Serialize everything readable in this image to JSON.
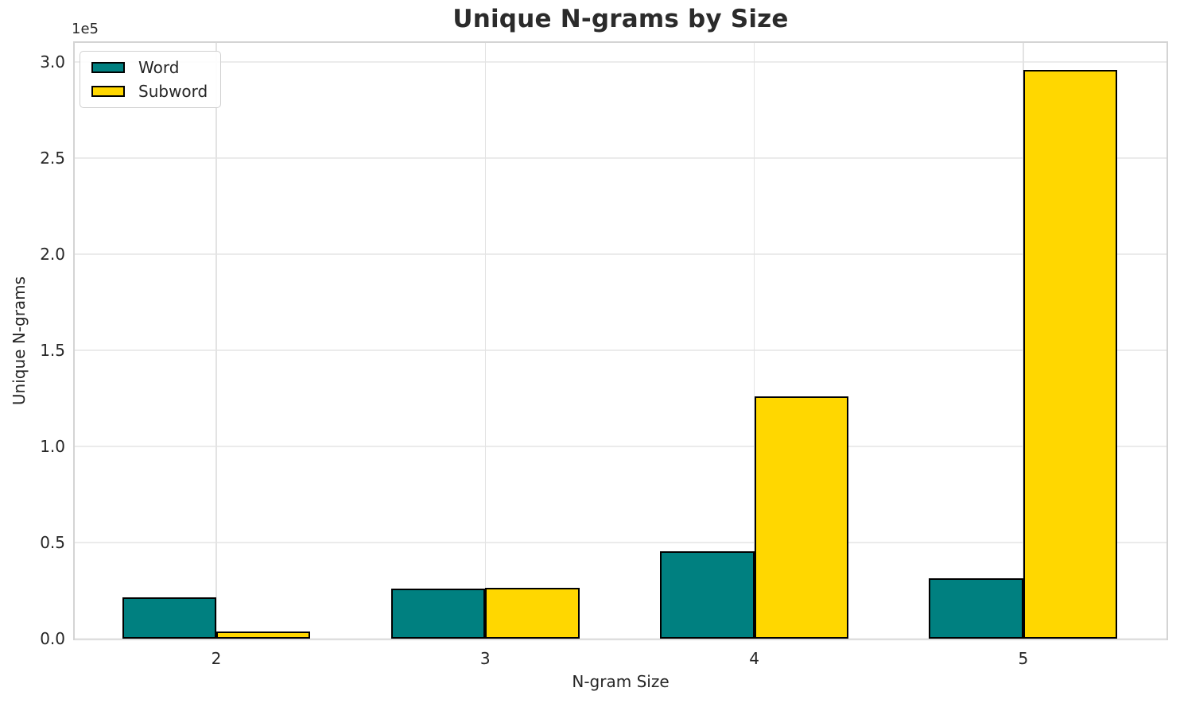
{
  "chart_data": {
    "type": "bar",
    "title": "Unique N-grams by Size",
    "xlabel": "N-gram Size",
    "ylabel": "Unique N-grams",
    "offset_text": "1e5",
    "categories": [
      "2",
      "3",
      "4",
      "5"
    ],
    "series": [
      {
        "name": "Word",
        "color": "#008080",
        "values": [
          21300,
          26000,
          45500,
          31400
        ]
      },
      {
        "name": "Subword",
        "color": "#FFD700",
        "values": [
          3600,
          26500,
          126200,
          295900
        ]
      }
    ],
    "bar_width": 0.35,
    "bar_edge_color": "#000000",
    "ylim": [
      0,
      310000
    ],
    "yticks": [
      0,
      50000,
      100000,
      150000,
      200000,
      250000,
      300000
    ],
    "ytick_labels": [
      "0.0",
      "0.5",
      "1.0",
      "1.5",
      "2.0",
      "2.5",
      "3.0"
    ],
    "grid": true,
    "legend_position": "upper left"
  }
}
